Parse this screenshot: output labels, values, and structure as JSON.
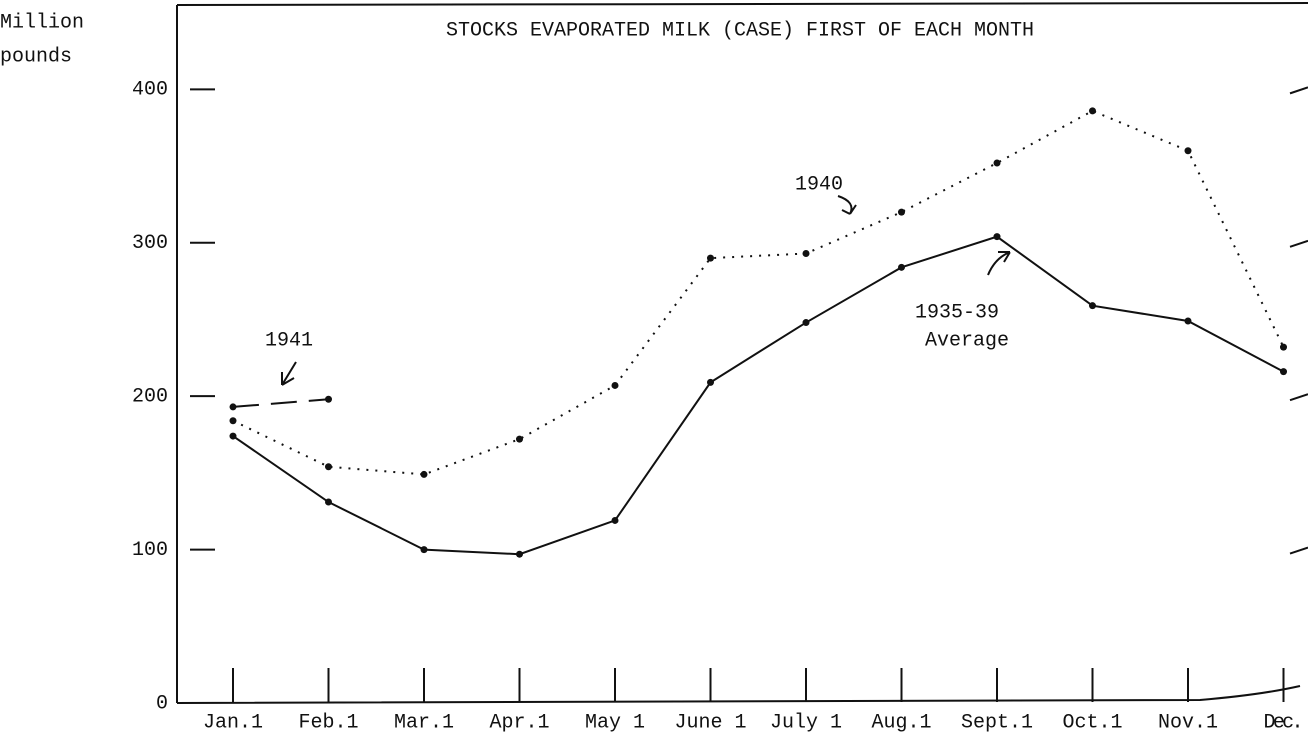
{
  "chart_data": {
    "type": "line",
    "title": "STOCKS EVAPORATED MILK (CASE) FIRST OF EACH MONTH",
    "ylabel": [
      "Million",
      "pounds"
    ],
    "categories": [
      "Jan.1",
      "Feb.1",
      "Mar.1",
      "Apr.1",
      "May 1",
      "June 1",
      "July 1",
      "Aug.1",
      "Sept.1",
      "Oct.1",
      "Nov.1",
      "Dec."
    ],
    "series": [
      {
        "name": "1935-39 Average",
        "color": "#111111",
        "style": "solid",
        "values": [
          174,
          131,
          100,
          97,
          119,
          209,
          248,
          284,
          304,
          259,
          249,
          216
        ]
      },
      {
        "name": "1940",
        "color": "#111111",
        "style": "dotted",
        "values": [
          184,
          154,
          149,
          172,
          207,
          290,
          293,
          320,
          352,
          386,
          360,
          232
        ]
      },
      {
        "name": "1941",
        "color": "#111111",
        "style": "dashed",
        "values": [
          193,
          198,
          null,
          null,
          null,
          null,
          null,
          null,
          null,
          null,
          null,
          null
        ]
      }
    ],
    "annotations": [
      "1941",
      "1940",
      "1935-39",
      "Average"
    ],
    "ylim": [
      0,
      455
    ],
    "yticks": [
      0,
      100,
      200,
      300,
      400
    ],
    "grid": false
  }
}
